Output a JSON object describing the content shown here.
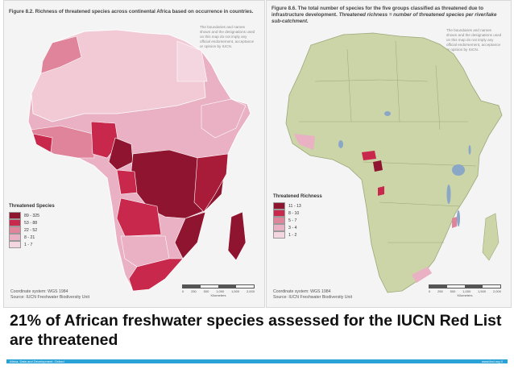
{
  "left_panel": {
    "title": "Figure 8.2. Richness of threatened species across continental Africa based on occurrence in countries.",
    "disclaimer": "The boundaries and names shown and the designations used on this map do not imply any official endorsement, acceptance or opinion by IUCN.",
    "legend_title": "Threatened Species",
    "legend": [
      {
        "label": "89 - 325",
        "color": "#8f1430"
      },
      {
        "label": "53 - 88",
        "color": "#c8284b"
      },
      {
        "label": "22 - 52",
        "color": "#e0849b"
      },
      {
        "label": "8 - 21",
        "color": "#e9b1c3"
      },
      {
        "label": "1 - 7",
        "color": "#f4d6e0"
      }
    ],
    "coord_system": "Coordinate system: WGS 1984",
    "source": "Source: IUCN Freshwater Biodiversity Unit",
    "scale_labels": [
      "0",
      "250",
      "500",
      "1,000",
      "1,500",
      "2,000"
    ],
    "scale_unit": "Kilometers"
  },
  "right_panel": {
    "title_bold": "Figure 8.6. The total number of species for the five groups classified as threatened due to infrastructure development.",
    "title_italic": "Threatened richness = number of threatened species per river/lake sub-catchment.",
    "disclaimer": "The boundaries and names shown and the designations used on this map do not imply any official endorsement, acceptance or opinion by IUCN.",
    "legend_title": "Threatened Richness",
    "legend": [
      {
        "label": "11 - 13",
        "color": "#8f1430"
      },
      {
        "label": "8 - 10",
        "color": "#c8284b"
      },
      {
        "label": "5 - 7",
        "color": "#e0849b"
      },
      {
        "label": "3 - 4",
        "color": "#e9b1c3"
      },
      {
        "label": "1 - 2",
        "color": "#f4d6e0"
      }
    ],
    "coord_system": "Coordinate system: WGS 1984",
    "source": "Source: IUCN Freshwater Biodiversity Unit",
    "scale_labels": [
      "0",
      "250",
      "500",
      "1,000",
      "1,500",
      "2,000"
    ],
    "scale_unit": "Kilometers"
  },
  "caption": "21% of African freshwater species assessed for the IUCN Red List are threatened",
  "footer": {
    "left": "Africa, Data and Development, Oxford",
    "right": "www.iied.org  0"
  },
  "colors": {
    "land_base": "#ccd5a8",
    "water": "#8aa7c7",
    "footer_bar": "#2aa2d6"
  }
}
